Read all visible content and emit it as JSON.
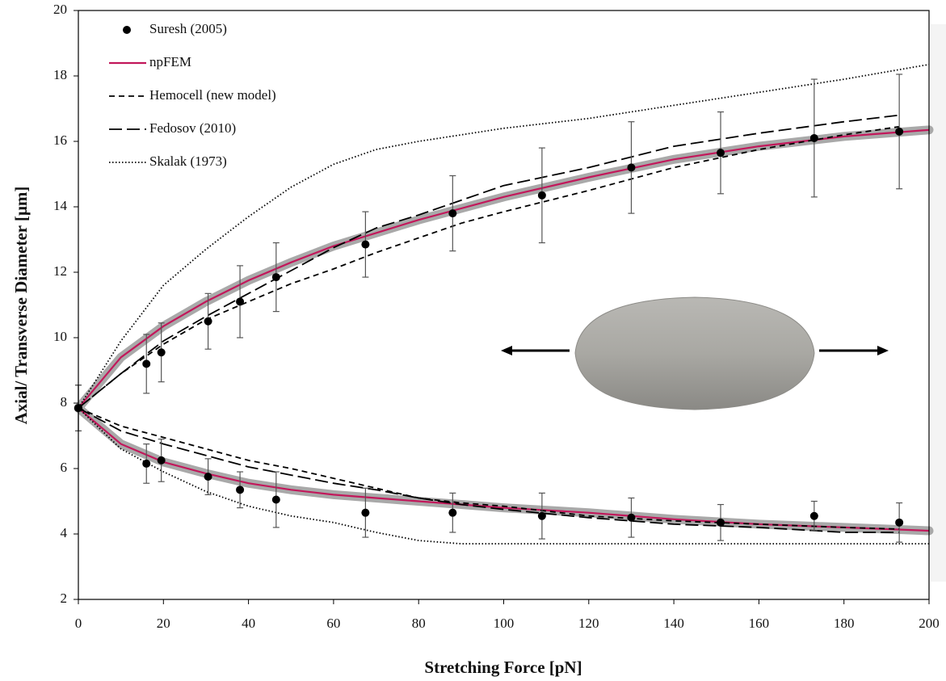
{
  "chart_data": {
    "type": "line",
    "xlabel": "Stretching Force [pN]",
    "ylabel": "Axial/ Transverse Diameter [μm]",
    "xlim": [
      0,
      200
    ],
    "ylim": [
      2,
      20
    ],
    "xticks": [
      0,
      20,
      40,
      60,
      80,
      100,
      120,
      140,
      160,
      180,
      200
    ],
    "yticks": [
      2,
      4,
      6,
      8,
      10,
      12,
      14,
      16,
      18,
      20
    ],
    "legend": "upper left",
    "series": [
      {
        "name": "Suresh (2005)",
        "type": "scatter",
        "color": "#000000",
        "x": [
          0,
          16,
          19.5,
          30.5,
          38,
          46.5,
          67.5,
          88,
          109,
          130,
          151,
          173,
          193
        ],
        "upper": [
          7.85,
          9.2,
          9.55,
          10.5,
          11.1,
          11.85,
          12.85,
          13.8,
          14.35,
          15.2,
          15.65,
          16.1,
          16.3
        ],
        "upper_error": [
          0.7,
          0.9,
          0.9,
          0.85,
          1.1,
          1.05,
          1.0,
          1.15,
          1.45,
          1.4,
          1.25,
          1.8,
          1.75
        ],
        "lower": [
          7.85,
          6.15,
          6.25,
          5.75,
          5.35,
          5.05,
          4.65,
          4.65,
          4.55,
          4.5,
          4.35,
          4.55,
          4.35
        ],
        "lower_error": [
          0.7,
          0.6,
          0.65,
          0.55,
          0.55,
          0.85,
          0.75,
          0.6,
          0.7,
          0.6,
          0.55,
          0.45,
          0.6
        ]
      },
      {
        "name": "npFEM",
        "type": "line",
        "style": "solid",
        "color": "#c2185b",
        "band_color": "#a9a9a9",
        "x": [
          0,
          10,
          20,
          30,
          40,
          50,
          60,
          70,
          80,
          90,
          100,
          120,
          140,
          160,
          180,
          200
        ],
        "upper": [
          7.85,
          9.4,
          10.35,
          11.1,
          11.75,
          12.3,
          12.8,
          13.2,
          13.6,
          13.95,
          14.3,
          14.9,
          15.45,
          15.85,
          16.15,
          16.35
        ],
        "lower": [
          7.85,
          6.75,
          6.2,
          5.85,
          5.55,
          5.35,
          5.2,
          5.1,
          5.0,
          4.9,
          4.8,
          4.65,
          4.45,
          4.3,
          4.2,
          4.1
        ]
      },
      {
        "name": "Hemocell (new model)",
        "type": "line",
        "style": "dashed",
        "color": "#000000",
        "x": [
          0,
          10,
          20,
          30,
          40,
          50,
          60,
          70,
          80,
          90,
          100,
          120,
          140,
          160,
          180,
          193
        ],
        "upper": [
          7.85,
          8.9,
          9.8,
          10.55,
          11.1,
          11.65,
          12.1,
          12.6,
          13.05,
          13.5,
          13.85,
          14.5,
          15.2,
          15.75,
          16.2,
          16.45
        ],
        "lower": [
          7.85,
          7.3,
          6.95,
          6.6,
          6.25,
          6.0,
          5.7,
          5.4,
          5.1,
          4.95,
          4.85,
          4.55,
          4.4,
          4.3,
          4.2,
          4.15
        ]
      },
      {
        "name": "Fedosov (2010)",
        "type": "line",
        "style": "long-dashed",
        "color": "#000000",
        "x": [
          0,
          10,
          20,
          30,
          40,
          50,
          60,
          70,
          80,
          90,
          100,
          120,
          140,
          160,
          180,
          193
        ],
        "upper": [
          7.85,
          8.9,
          9.9,
          10.65,
          11.35,
          12.05,
          12.75,
          13.35,
          13.75,
          14.2,
          14.65,
          15.2,
          15.85,
          16.25,
          16.6,
          16.8
        ],
        "lower": [
          7.85,
          7.15,
          6.75,
          6.4,
          6.05,
          5.8,
          5.55,
          5.35,
          5.1,
          4.9,
          4.75,
          4.5,
          4.3,
          4.2,
          4.05,
          4.05
        ]
      },
      {
        "name": "Skalak (1973)",
        "type": "line",
        "style": "dotted",
        "color": "#000000",
        "x": [
          0,
          10,
          20,
          30,
          40,
          50,
          60,
          70,
          80,
          90,
          100,
          120,
          140,
          160,
          180,
          200
        ],
        "upper": [
          7.85,
          9.9,
          11.6,
          12.7,
          13.7,
          14.6,
          15.3,
          15.75,
          16.0,
          16.2,
          16.4,
          16.7,
          17.1,
          17.5,
          17.9,
          18.35
        ],
        "lower": [
          7.85,
          6.6,
          5.9,
          5.3,
          4.85,
          4.55,
          4.35,
          4.05,
          3.8,
          3.7,
          3.7,
          3.7,
          3.7,
          3.7,
          3.7,
          3.7
        ]
      }
    ]
  }
}
